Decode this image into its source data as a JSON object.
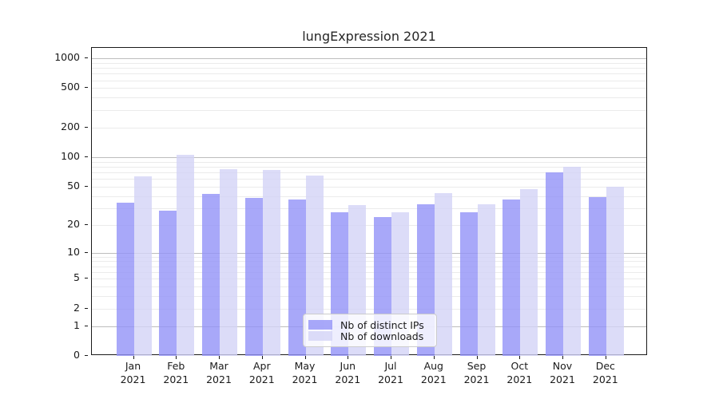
{
  "title": "lungExpression 2021",
  "chart_data": {
    "type": "bar",
    "title": "lungExpression 2021",
    "categories": [
      "Jan 2021",
      "Feb 2021",
      "Mar 2021",
      "Apr 2021",
      "May 2021",
      "Jun 2021",
      "Jul 2021",
      "Aug 2021",
      "Sep 2021",
      "Oct 2021",
      "Nov 2021",
      "Dec 2021"
    ],
    "series": [
      {
        "name": "Nb of distinct IPs",
        "color": "rgba(146,146,247,0.8)",
        "values": [
          34,
          28,
          42,
          38,
          37,
          27,
          24,
          33,
          27,
          37,
          70,
          39
        ]
      },
      {
        "name": "Nb of downloads",
        "color": "rgba(211,211,246,0.8)",
        "values": [
          64,
          105,
          76,
          74,
          65,
          32,
          27,
          43,
          33,
          47,
          80,
          50
        ]
      }
    ],
    "yscale": "log1p",
    "ylim": [
      0,
      1270
    ],
    "yticks": [
      0,
      1,
      2,
      5,
      10,
      20,
      50,
      100,
      200,
      500,
      1000
    ],
    "major_gridlines": [
      1,
      10,
      100,
      1000
    ],
    "minor_gridlines": [
      2,
      3,
      4,
      5,
      6,
      7,
      8,
      9,
      20,
      30,
      40,
      50,
      60,
      70,
      80,
      90,
      200,
      300,
      400,
      500,
      600,
      700,
      800,
      900
    ],
    "grid": "on",
    "legend_position": "lower center",
    "xlabel": "",
    "ylabel": ""
  }
}
